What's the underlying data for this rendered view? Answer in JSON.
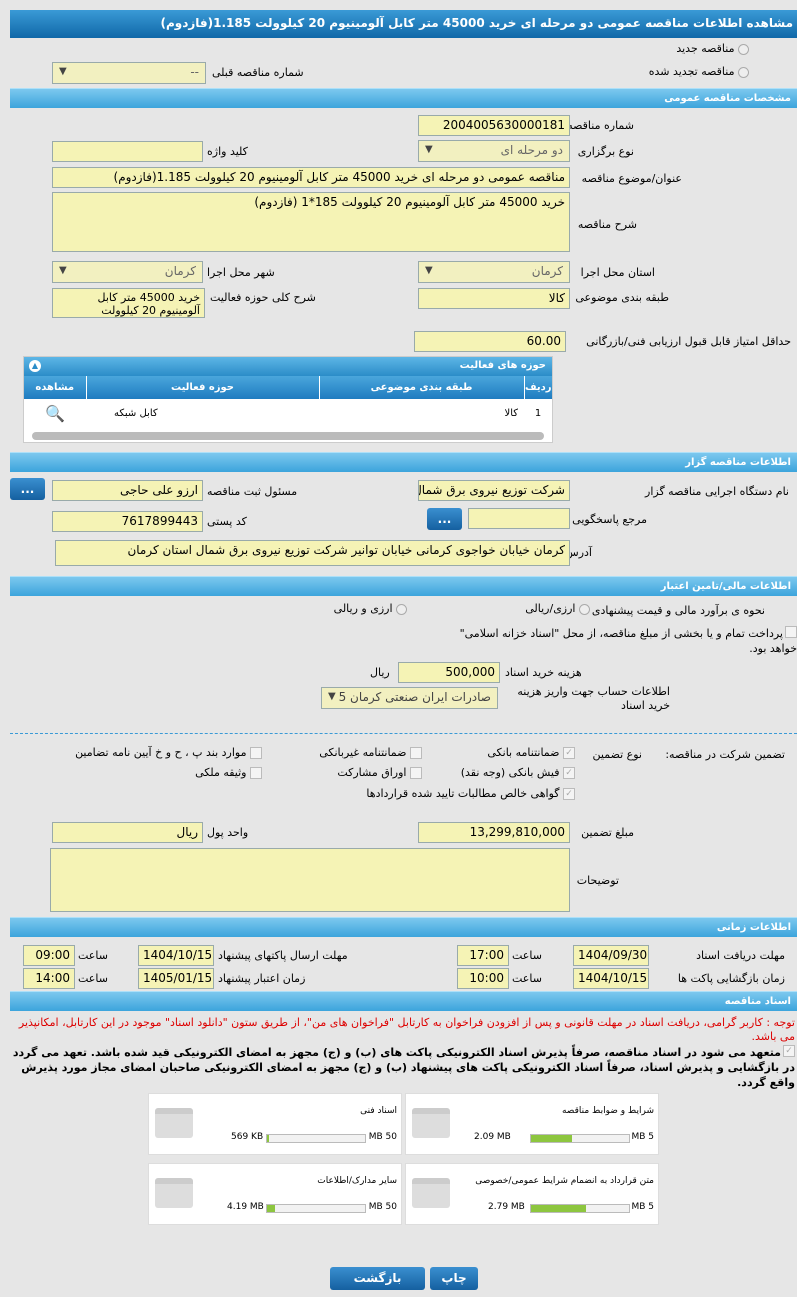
{
  "title": "مشاهده اطلاعات مناقصه عمومی دو مرحله ای خرید 45000 متر کابل آلومینیوم 20 کیلوولت 1.185(فازدوم)",
  "top": {
    "new_tender": "مناقصه جدید",
    "renewed_tender": "مناقصه تجدید شده",
    "prev_number_label": "شماره مناقصه قبلی",
    "prev_number_value": "--"
  },
  "general": {
    "header": "مشخصات مناقصه عمومی",
    "number_label": "شماره مناقصه",
    "number": "2004005630000181",
    "type_label": "نوع برگزاری",
    "type": "دو مرحله ای",
    "keyword_label": "کلید واژه",
    "keyword": "",
    "subject_label": "عنوان/موضوع مناقصه",
    "subject": "مناقصه عمومی دو مرحله ای خرید 45000 متر کابل آلومینیوم 20 کیلوولت 1.185(فازدوم)",
    "desc_label": "شرح مناقصه",
    "desc": "خرید 45000 متر کابل آلومینیوم 20 کیلوولت 185*1 (فازدوم)",
    "province_label": "استان محل اجرا",
    "province": "کرمان",
    "city_label": "شهر محل اجرا",
    "city": "کرمان",
    "category_label": "طبقه بندی موضوعی",
    "category": "کالا",
    "activity_desc_label": "شرح کلی حوزه فعالیت",
    "activity_desc": "خرید 45000 متر کابل آلومینیوم 20 کیلوولت",
    "min_score_label": "حداقل امتیاز قابل قبول ارزیابی فنی/بازرگانی",
    "min_score": "60.00"
  },
  "activities": {
    "header": "حوزه های فعالیت",
    "columns": [
      "ردیف",
      "طبقه بندی موضوعی",
      "حوزه فعالیت",
      "مشاهده"
    ],
    "rows": [
      {
        "row": "1",
        "category": "کالا",
        "field": "کابل شبکه"
      }
    ]
  },
  "organizer": {
    "header": "اطلاعات مناقصه گزار",
    "org_label": "نام دستگاه اجرایی مناقصه گزار",
    "org": "شرکت توزیع نیروی برق شمال استان کرمان",
    "resp_label": "مسئول ثبت مناقصه",
    "resp": "ارزو علی حاجی",
    "ref_label": "مرجع پاسخگویی",
    "ref": "",
    "postal_label": "کد پستی",
    "postal": "7617899443",
    "address_label": "آدرس",
    "address": "کرمان خیابان خواجوی کرمانی خیابان توانیر شرکت توزیع نیروی برق شمال استان کرمان",
    "more": "..."
  },
  "finance": {
    "header": "اطلاعات مالی/تامین اعتبار",
    "method_label": "نحوه ی برآورد مالی و قیمت پیشنهادی",
    "opt1": "ارزی/ریالی",
    "opt2": "ارزی و ریالی",
    "treasury": "پرداخت تمام و یا بخشی از مبلغ مناقصه، از محل \"اسناد خزانه اسلامی\" خواهد بود.",
    "doc_cost_label": "هزینه خرید اسناد",
    "doc_cost": "500,000",
    "doc_cost_unit": "ریال",
    "account_label": "اطلاعات حساب جهت واریز هزینه خرید اسناد",
    "account": "صادرات ایران صنعتی کرمان 5"
  },
  "guarantee": {
    "label": "تضمین شرکت در مناقصه:",
    "type_label": "نوع تضمین",
    "items": [
      {
        "label": "ضمانتنامه بانکی",
        "checked": true
      },
      {
        "label": "ضمانتنامه غیربانکی",
        "checked": false
      },
      {
        "label": "موارد بند پ ، ح و خ آیین نامه تضامین",
        "checked": false
      },
      {
        "label": "فیش بانکی (وجه نقد)",
        "checked": true
      },
      {
        "label": "اوراق مشارکت",
        "checked": false
      },
      {
        "label": "وثیقه ملکی",
        "checked": false
      },
      {
        "label": "گواهی خالص مطالبات تایید شده قراردادها",
        "checked": true
      }
    ],
    "amount_label": "مبلغ تضمین",
    "amount": "13,299,810,000",
    "currency_label": "واحد پول",
    "currency": "ریال",
    "notes_label": "توضیحات",
    "notes": ""
  },
  "timing": {
    "header": "اطلاعات زمانی",
    "doc_deadline_label": "مهلت دریافت اسناد",
    "doc_deadline": "1404/09/30",
    "time_label": "ساعت",
    "doc_deadline_time": "17:00",
    "submit_label": "مهلت ارسال پاکتهای پیشنهاد",
    "submit": "1404/10/15",
    "submit_time": "09:00",
    "open_label": "زمان بازگشایی پاکت ها",
    "open": "1404/10/15",
    "open_time": "10:00",
    "validity_label": "زمان اعتبار پیشنهاد",
    "validity": "1405/01/15",
    "validity_time": "14:00"
  },
  "docs": {
    "header": "اسناد مناقصه",
    "notice": "توجه : کاربر گرامی، دریافت اسناد در مهلت قانونی و پس از افزودن فراخوان به کارتابل \"فراخوان های من\"، از طریق ستون \"دانلود اسناد\" موجود در این کارتابل، امکانپذیر می باشد.",
    "commitment": "متعهد می شود در اسناد مناقصه، صرفاً پذیرش اسناد الکترونیکی پاکت های (ب) و (ج) مجهز به امضای الکترونیکی قید شده باشد. تعهد می گردد در بازگشایی و پذیرش اسناد، صرفاً اسناد الکترونیکی پاکت های پیشنهاد (ب) و (ج) مجهز به امضای الکترونیکی صاحبان امضای مجاز مورد پذیرش واقع گردد.",
    "files": [
      {
        "name": "شرایط و ضوابط مناقصه",
        "size": "2.09 MB",
        "max": "5 MB",
        "pct": 42
      },
      {
        "name": "اسناد فنی",
        "size": "569 KB",
        "max": "50 MB",
        "pct": 2
      },
      {
        "name": "متن قرارداد به انضمام شرایط عمومی/خصوصی",
        "size": "2.79 MB",
        "max": "5 MB",
        "pct": 56
      },
      {
        "name": "سایر مدارک/اطلاعات",
        "size": "4.19 MB",
        "max": "50 MB",
        "pct": 8
      }
    ]
  },
  "buttons": {
    "print": "چاپ",
    "back": "بازگشت"
  }
}
